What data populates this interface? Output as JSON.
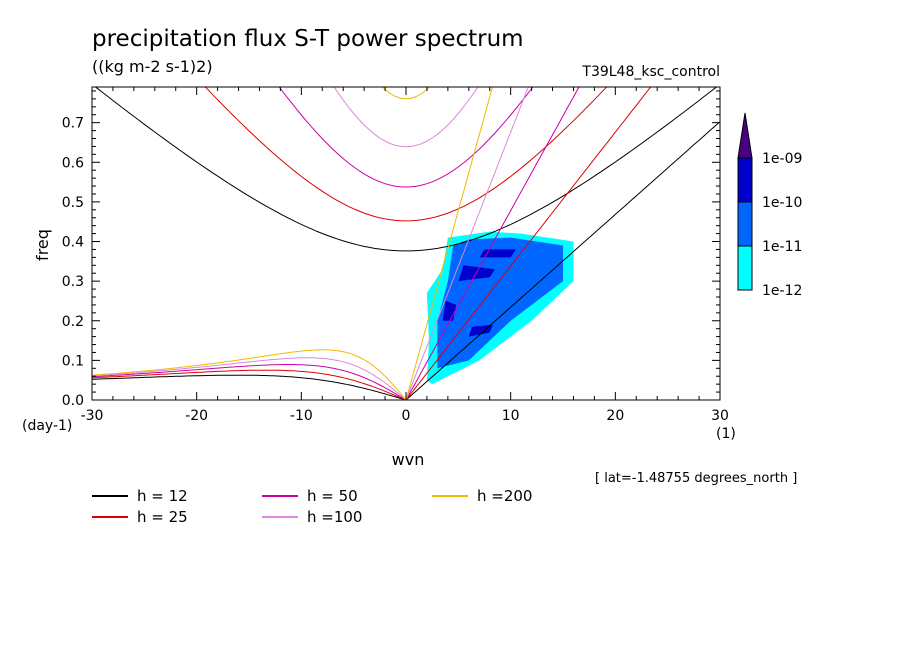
{
  "chart_data": {
    "type": "line",
    "title": "precipitation flux S-T power spectrum",
    "subtitle": "((kg m-2 s-1)2)",
    "run_label": "T39L48_ksc_control",
    "xlabel": "wvn",
    "ylabel": "freq",
    "x_unit": "(1)",
    "y_unit": "(day-1)",
    "xlim": [
      -30,
      30
    ],
    "ylim": [
      0,
      0.79
    ],
    "x_ticks": [
      -30,
      -20,
      -10,
      0,
      10,
      20,
      30
    ],
    "x_tick_labels": [
      "-30",
      "-20",
      "-10",
      "0",
      "10",
      "20",
      "30"
    ],
    "y_ticks": [
      0,
      0.1,
      0.2,
      0.3,
      0.4,
      0.5,
      0.6,
      0.7
    ],
    "y_tick_labels": [
      "0.0",
      "0.1",
      "0.2",
      "0.3",
      "0.4",
      "0.5",
      "0.6",
      "0.7"
    ],
    "footnote": "[ lat=-1.48755 degrees_north ]",
    "dispersion_curves": [
      {
        "name": "h = 12",
        "color": "#000000",
        "h": 12
      },
      {
        "name": "h = 25",
        "color": "#dd0000",
        "h": 25
      },
      {
        "name": "h = 50",
        "color": "#cc00aa",
        "h": 50
      },
      {
        "name": "h =100",
        "color": "#dd88dd",
        "h": 100
      },
      {
        "name": "h =200",
        "color": "#eebb00",
        "h": 200
      }
    ],
    "colorbar": {
      "labels": [
        "1e-09",
        "1e-10",
        "1e-11",
        "1e-12"
      ],
      "colors": [
        "#4b0082",
        "#0000cc",
        "#0066ff",
        "#00ffff"
      ]
    },
    "power_shading_regions": [
      {
        "level": "1e-12",
        "color": "#00ffff",
        "points": [
          [
            2,
            0.05
          ],
          [
            2.5,
            0.04
          ],
          [
            7,
            0.1
          ],
          [
            12,
            0.2
          ],
          [
            16,
            0.3
          ],
          [
            16,
            0.4
          ],
          [
            11,
            0.42
          ],
          [
            8,
            0.425
          ],
          [
            4,
            0.41
          ],
          [
            3.5,
            0.33
          ],
          [
            2,
            0.27
          ],
          [
            2.2,
            0.15
          ]
        ]
      },
      {
        "level": "1e-11",
        "color": "#0066ff",
        "points": [
          [
            3,
            0.08
          ],
          [
            6,
            0.1
          ],
          [
            10,
            0.2
          ],
          [
            15,
            0.3
          ],
          [
            15,
            0.39
          ],
          [
            10,
            0.41
          ],
          [
            6,
            0.405
          ],
          [
            4.5,
            0.39
          ],
          [
            4,
            0.3
          ],
          [
            3,
            0.2
          ]
        ]
      },
      {
        "level": "1e-10",
        "color": "#0000cc",
        "points": [
          [
            3.5,
            0.2
          ],
          [
            4.5,
            0.2
          ],
          [
            4.8,
            0.24
          ],
          [
            3.8,
            0.25
          ]
        ]
      },
      {
        "level": "1e-10",
        "color": "#0000cc",
        "points": [
          [
            5,
            0.3
          ],
          [
            8,
            0.31
          ],
          [
            8.5,
            0.33
          ],
          [
            5.5,
            0.34
          ]
        ]
      },
      {
        "level": "1e-10",
        "color": "#0000cc",
        "points": [
          [
            7,
            0.36
          ],
          [
            10,
            0.36
          ],
          [
            10.5,
            0.38
          ],
          [
            7.5,
            0.38
          ]
        ]
      },
      {
        "level": "1e-10",
        "color": "#0000cc",
        "points": [
          [
            6,
            0.16
          ],
          [
            8,
            0.17
          ],
          [
            8.3,
            0.19
          ],
          [
            6.3,
            0.185
          ]
        ]
      }
    ]
  }
}
